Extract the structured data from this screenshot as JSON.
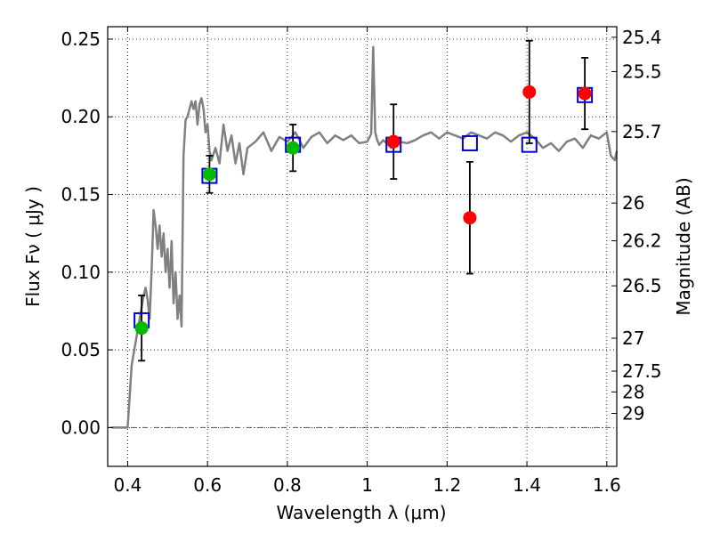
{
  "chart_data": {
    "type": "scatter",
    "xlabel": "Wavelength  λ (μm)",
    "ylabel": "Flux  Fν  ( μJy )",
    "y2label": "Magnitude (AB)",
    "xlim": [
      0.35,
      1.625
    ],
    "ylim": [
      -0.025,
      0.258
    ],
    "grid": true,
    "xticks": [
      0.4,
      0.6,
      0.8,
      1.0,
      1.2,
      1.4,
      1.6
    ],
    "xtick_labels": [
      "0.4",
      "0.6",
      "0.8",
      "1",
      "1.2",
      "1.4",
      "1.6"
    ],
    "yticks": [
      0.0,
      0.05,
      0.1,
      0.15,
      0.2,
      0.25
    ],
    "ytick_labels": [
      "0.00",
      "0.05",
      "0.10",
      "0.15",
      "0.20",
      "0.25"
    ],
    "y2ticks": [
      {
        "label": "25.4",
        "flux": 0.2512
      },
      {
        "label": "25.5",
        "flux": 0.2291
      },
      {
        "label": "25.7",
        "flux": 0.1905
      },
      {
        "label": "26",
        "flux": 0.1445
      },
      {
        "label": "26.2",
        "flux": 0.1202
      },
      {
        "label": "26.5",
        "flux": 0.0912
      },
      {
        "label": "27",
        "flux": 0.0575
      },
      {
        "label": "27.5",
        "flux": 0.0363
      },
      {
        "label": "28",
        "flux": 0.0229
      },
      {
        "label": "29",
        "flux": 0.0091
      }
    ],
    "series": [
      {
        "kind": "model-line",
        "color": "#808080",
        "x": [
          0.36,
          0.39,
          0.4,
          0.405,
          0.41,
          0.42,
          0.43,
          0.44,
          0.445,
          0.45,
          0.455,
          0.46,
          0.465,
          0.47,
          0.475,
          0.48,
          0.485,
          0.49,
          0.495,
          0.5,
          0.505,
          0.51,
          0.515,
          0.52,
          0.525,
          0.53,
          0.535,
          0.54,
          0.545,
          0.55,
          0.56,
          0.565,
          0.57,
          0.575,
          0.58,
          0.585,
          0.59,
          0.595,
          0.6,
          0.605,
          0.61,
          0.62,
          0.63,
          0.64,
          0.65,
          0.66,
          0.67,
          0.68,
          0.69,
          0.7,
          0.72,
          0.74,
          0.76,
          0.78,
          0.8,
          0.82,
          0.84,
          0.86,
          0.88,
          0.9,
          0.92,
          0.94,
          0.96,
          0.98,
          1.0,
          1.01,
          1.015,
          1.02,
          1.025,
          1.03,
          1.04,
          1.06,
          1.08,
          1.1,
          1.12,
          1.14,
          1.16,
          1.18,
          1.2,
          1.22,
          1.24,
          1.26,
          1.28,
          1.3,
          1.32,
          1.34,
          1.36,
          1.38,
          1.4,
          1.42,
          1.44,
          1.46,
          1.48,
          1.5,
          1.52,
          1.54,
          1.56,
          1.58,
          1.6,
          1.61,
          1.62,
          1.625
        ],
        "y": [
          0.0,
          0.0,
          0.0,
          0.02,
          0.04,
          0.055,
          0.07,
          0.085,
          0.09,
          0.082,
          0.07,
          0.1,
          0.14,
          0.13,
          0.115,
          0.13,
          0.11,
          0.125,
          0.1,
          0.115,
          0.09,
          0.12,
          0.08,
          0.1,
          0.07,
          0.085,
          0.065,
          0.175,
          0.198,
          0.2,
          0.21,
          0.205,
          0.21,
          0.195,
          0.208,
          0.212,
          0.205,
          0.19,
          0.195,
          0.178,
          0.172,
          0.18,
          0.17,
          0.195,
          0.178,
          0.188,
          0.17,
          0.183,
          0.163,
          0.18,
          0.184,
          0.19,
          0.178,
          0.187,
          0.184,
          0.19,
          0.18,
          0.187,
          0.19,
          0.183,
          0.188,
          0.185,
          0.188,
          0.183,
          0.184,
          0.189,
          0.245,
          0.19,
          0.185,
          0.182,
          0.185,
          0.18,
          0.184,
          0.183,
          0.185,
          0.188,
          0.19,
          0.186,
          0.19,
          0.188,
          0.186,
          0.19,
          0.188,
          0.186,
          0.19,
          0.188,
          0.184,
          0.188,
          0.19,
          0.186,
          0.18,
          0.183,
          0.178,
          0.184,
          0.186,
          0.18,
          0.188,
          0.186,
          0.19,
          0.175,
          0.172,
          0.178
        ]
      },
      {
        "kind": "model-photometry",
        "marker": "open-square",
        "color": "#0000cc",
        "x": [
          0.435,
          0.605,
          0.814,
          1.066,
          1.257,
          1.406,
          1.545
        ],
        "y": [
          0.069,
          0.162,
          0.182,
          0.182,
          0.183,
          0.182,
          0.214
        ]
      },
      {
        "kind": "detections",
        "marker": "filled-circle",
        "color": "#00bb00",
        "x": [
          0.435,
          0.605,
          0.814
        ],
        "y": [
          0.064,
          0.163,
          0.18
        ],
        "yerr": [
          0.021,
          0.012,
          0.015
        ]
      },
      {
        "kind": "detections",
        "marker": "filled-circle",
        "color": "#ff0000",
        "x": [
          1.066,
          1.257,
          1.406,
          1.545
        ],
        "y": [
          0.184,
          0.135,
          0.216,
          0.215
        ],
        "yerr": [
          0.024,
          0.036,
          0.033,
          0.023
        ]
      }
    ],
    "zero_line": true
  }
}
